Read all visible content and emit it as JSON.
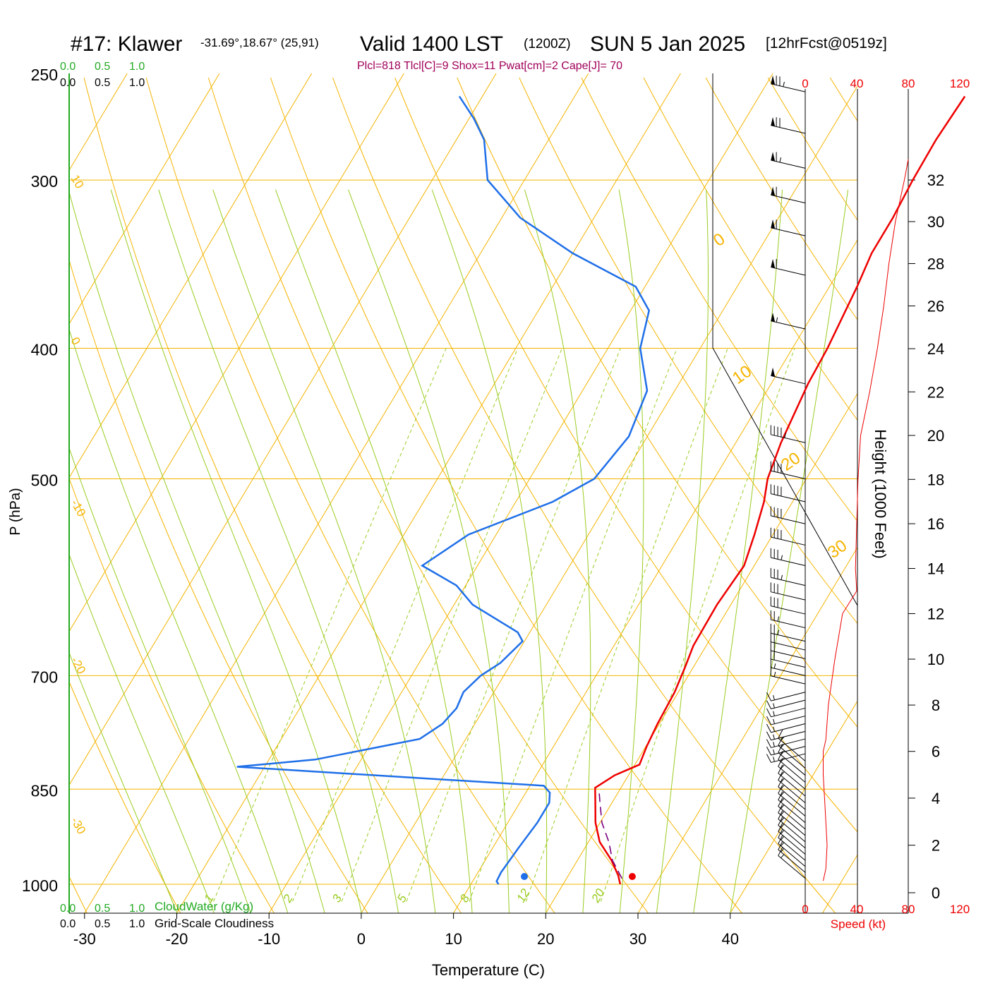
{
  "header": {
    "station": "#17: Klawer",
    "coords": "-31.69°,18.67° (25,91)",
    "valid": "Valid 1400 LST",
    "utc": "(1200Z)",
    "date": "SUN 5 Jan 2025",
    "forecast": "[12hrFcst@0519z]",
    "indices": "Plcl=818 Tlcl[C]=9 Shox=11 Pwat[cm]=2 Cape[J]= 70"
  },
  "colors": {
    "temperature": "#ee0000",
    "dewpoint": "#1f6fe8",
    "parcel": "#7a0080",
    "isobar": "#f5b400",
    "dry_adiabat": "#f5b400",
    "moist_adiabat": "#9acc20",
    "mixing_ratio": "#9acc20",
    "cloud_axis": "#22aa22",
    "speed": "#ee0000",
    "title_accent": "#a0005a"
  },
  "chart_data": {
    "type": "line",
    "subtype": "skew-t log-p sounding",
    "xlabel": "Temperature (C)",
    "ylabel": "P (hPa)",
    "xlim": [
      -30,
      40
    ],
    "x_ticks": [
      -30,
      -20,
      -10,
      0,
      10,
      20,
      30,
      40
    ],
    "ylim": [
      1000,
      250
    ],
    "y_scale": "log",
    "y_ticks": [
      1000,
      850,
      700,
      500,
      400,
      300,
      250
    ],
    "grid": true,
    "isotherm_labels": [
      {
        "label": "10",
        "temp": 10
      },
      {
        "label": "0",
        "temp": 0
      },
      {
        "label": "-10",
        "temp": -10
      },
      {
        "label": "-20",
        "temp": -20
      },
      {
        "label": "-30",
        "temp": -30
      }
    ],
    "isotherm_labels_right": [
      {
        "label": "0",
        "temp": 0
      },
      {
        "label": "10",
        "temp": 10
      },
      {
        "label": "20",
        "temp": 20
      },
      {
        "label": "30",
        "temp": 30
      }
    ],
    "mixing_ratio_labels": [
      "1",
      "2",
      "3",
      "5",
      "8",
      "12",
      "20"
    ],
    "series": [
      {
        "key": "temperature",
        "points": [
          [
            1000,
            26.2
          ],
          [
            985,
            25.4
          ],
          [
            960,
            23.7
          ],
          [
            930,
            21.2
          ],
          [
            900,
            19.5
          ],
          [
            870,
            18.2
          ],
          [
            848,
            17.2
          ],
          [
            830,
            18.5
          ],
          [
            815,
            20.5
          ],
          [
            790,
            20.1
          ],
          [
            760,
            19.8
          ],
          [
            720,
            19.6
          ],
          [
            690,
            19.1
          ],
          [
            665,
            18.6
          ],
          [
            620,
            18.5
          ],
          [
            580,
            18.9
          ],
          [
            550,
            18.0
          ],
          [
            520,
            16.9
          ],
          [
            500,
            15.8
          ],
          [
            470,
            14.9
          ],
          [
            425,
            14.0
          ],
          [
            400,
            13.8
          ],
          [
            360,
            13.0
          ],
          [
            340,
            12.4
          ],
          [
            320,
            12.4
          ],
          [
            300,
            12.1
          ],
          [
            280,
            12.0
          ],
          [
            260,
            12.3
          ]
        ]
      },
      {
        "key": "dewpoint",
        "points": [
          [
            1000,
            13.0
          ],
          [
            995,
            12.6
          ],
          [
            980,
            12.5
          ],
          [
            940,
            12.8
          ],
          [
            900,
            13.2
          ],
          [
            870,
            13.2
          ],
          [
            855,
            12.6
          ],
          [
            845,
            11.5
          ],
          [
            818,
            -23.0
          ],
          [
            808,
            -15.0
          ],
          [
            780,
            -5.0
          ],
          [
            760,
            -3.5
          ],
          [
            740,
            -3.0
          ],
          [
            720,
            -3.3
          ],
          [
            700,
            -2.5
          ],
          [
            685,
            -1.2
          ],
          [
            660,
            -0.2
          ],
          [
            650,
            -1.3
          ],
          [
            620,
            -8.0
          ],
          [
            600,
            -11.0
          ],
          [
            580,
            -16.0
          ],
          [
            550,
            -13.0
          ],
          [
            520,
            -6.0
          ],
          [
            500,
            -3.0
          ],
          [
            465,
            -2.0
          ],
          [
            430,
            -3.0
          ],
          [
            400,
            -6.5
          ],
          [
            375,
            -8.0
          ],
          [
            360,
            -11.0
          ],
          [
            340,
            -20.0
          ],
          [
            320,
            -28.0
          ],
          [
            300,
            -34.0
          ],
          [
            280,
            -37.0
          ],
          [
            270,
            -39.5
          ],
          [
            260,
            -42.5
          ]
        ]
      },
      {
        "key": "parcel",
        "dashed": true,
        "points": [
          [
            990,
            26.0
          ],
          [
            960,
            23.8
          ],
          [
            930,
            22.2
          ],
          [
            900,
            20.2
          ],
          [
            870,
            18.7
          ],
          [
            852,
            17.8
          ]
        ]
      }
    ],
    "surface_markers": [
      {
        "key": "temperature",
        "temp": 27.5
      },
      {
        "key": "dewpoint",
        "temp": 15.8
      }
    ],
    "height_axis": {
      "label": "Height (1000 Feet)",
      "ticks": [
        0,
        2,
        4,
        6,
        8,
        10,
        12,
        14,
        16,
        18,
        20,
        22,
        24,
        26,
        28,
        30,
        32
      ]
    },
    "wind_speed_axis": {
      "label": "Speed (kt)",
      "ticks": [
        "0",
        "40",
        "80",
        "120"
      ],
      "xlim": [
        0,
        120
      ],
      "profile_height_kft": [
        0.5,
        1,
        2,
        3,
        4,
        5,
        6,
        6.5,
        8,
        10,
        12,
        13,
        14,
        16,
        18,
        20,
        22,
        24,
        26,
        28,
        30,
        32,
        33
      ],
      "profile_speed_kt": [
        14,
        16,
        17,
        16,
        15,
        14,
        14,
        16,
        18,
        23,
        29,
        40,
        39,
        40,
        41,
        43,
        50,
        56,
        61,
        65,
        70,
        77,
        80
      ]
    },
    "cloud_axes": {
      "cloud_water_label": "CloudWater (g/Kg)",
      "cloudiness_label": "Grid-Scale Cloudiness",
      "ticks": [
        "0.0",
        "0.5",
        "1.0"
      ]
    },
    "wind_barbs": [
      {
        "p": 990,
        "kt": 15
      },
      {
        "p": 980,
        "kt": 15
      },
      {
        "p": 970,
        "kt": 15
      },
      {
        "p": 960,
        "kt": 15
      },
      {
        "p": 950,
        "kt": 15
      },
      {
        "p": 940,
        "kt": 15
      },
      {
        "p": 930,
        "kt": 15
      },
      {
        "p": 920,
        "kt": 15
      },
      {
        "p": 910,
        "kt": 15
      },
      {
        "p": 900,
        "kt": 15
      },
      {
        "p": 890,
        "kt": 15
      },
      {
        "p": 880,
        "kt": 15
      },
      {
        "p": 870,
        "kt": 15
      },
      {
        "p": 860,
        "kt": 15
      },
      {
        "p": 850,
        "kt": 15
      },
      {
        "p": 840,
        "kt": 15
      },
      {
        "p": 830,
        "kt": 15
      },
      {
        "p": 820,
        "kt": 15
      },
      {
        "p": 810,
        "kt": 15
      },
      {
        "p": 800,
        "kt": 15
      },
      {
        "p": 790,
        "kt": 15
      },
      {
        "p": 780,
        "kt": 15
      },
      {
        "p": 770,
        "kt": 15
      },
      {
        "p": 760,
        "kt": 15
      },
      {
        "p": 750,
        "kt": 15
      },
      {
        "p": 740,
        "kt": 15
      },
      {
        "p": 730,
        "kt": 15
      },
      {
        "p": 720,
        "kt": 15
      },
      {
        "p": 710,
        "kt": 15
      },
      {
        "p": 700,
        "kt": 15
      },
      {
        "p": 690,
        "kt": 20
      },
      {
        "p": 680,
        "kt": 20
      },
      {
        "p": 670,
        "kt": 20
      },
      {
        "p": 660,
        "kt": 25
      },
      {
        "p": 645,
        "kt": 25
      },
      {
        "p": 630,
        "kt": 30
      },
      {
        "p": 615,
        "kt": 30
      },
      {
        "p": 600,
        "kt": 35
      },
      {
        "p": 580,
        "kt": 35
      },
      {
        "p": 560,
        "kt": 40
      },
      {
        "p": 540,
        "kt": 40
      },
      {
        "p": 520,
        "kt": 40
      },
      {
        "p": 500,
        "kt": 40
      },
      {
        "p": 470,
        "kt": 45
      },
      {
        "p": 425,
        "kt": 50
      },
      {
        "p": 387,
        "kt": 55
      },
      {
        "p": 353,
        "kt": 60
      },
      {
        "p": 330,
        "kt": 60
      },
      {
        "p": 312,
        "kt": 60
      },
      {
        "p": 294,
        "kt": 65
      },
      {
        "p": 277,
        "kt": 70
      },
      {
        "p": 258,
        "kt": 75
      }
    ]
  }
}
